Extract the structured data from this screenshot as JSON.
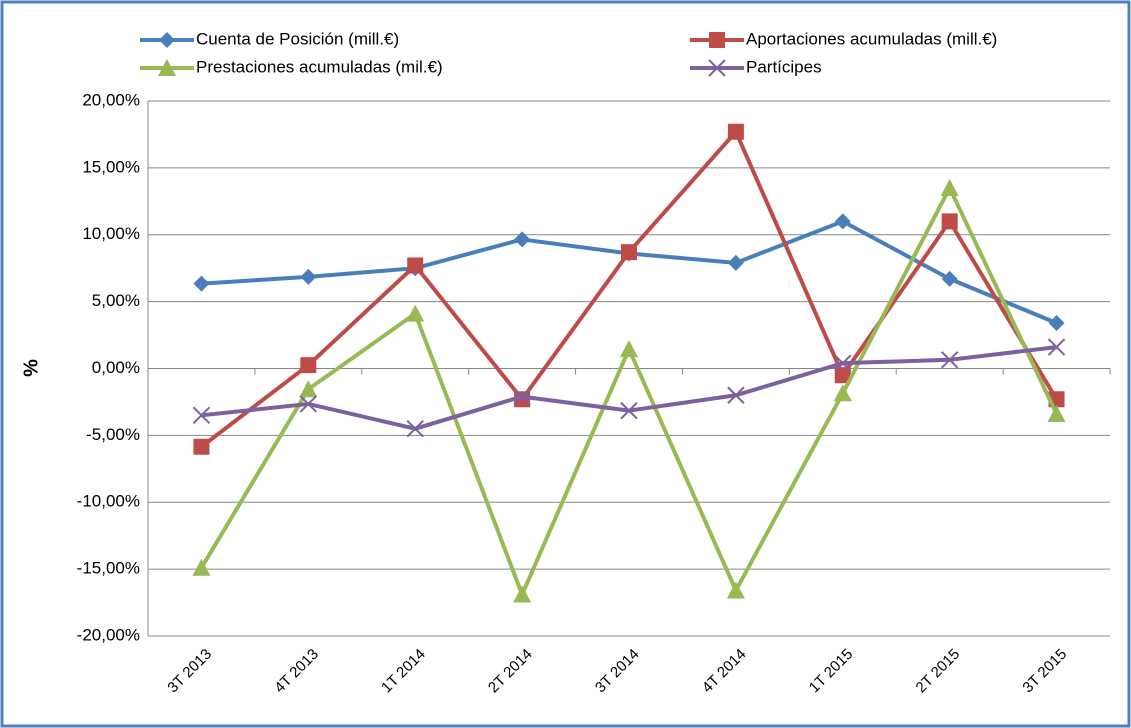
{
  "chart_data": {
    "type": "line",
    "y_label": "%",
    "categories": [
      "3T 2013",
      "4T 2013",
      "1T 2014",
      "2T 2014",
      "3T 2014",
      "4T 2014",
      "1T 2015",
      "2T 2015",
      "3T 2015"
    ],
    "series": [
      {
        "name": "Cuenta de Posición  (mill.€)",
        "color": "#4a7ebb",
        "marker": "diamond",
        "values": [
          6.35,
          6.85,
          7.5,
          9.65,
          8.6,
          7.9,
          11.0,
          6.7,
          3.4
        ]
      },
      {
        "name": "Aportaciones acumuladas  (mill.€)",
        "color": "#be4b48",
        "marker": "square",
        "values": [
          -5.85,
          0.25,
          7.7,
          -2.3,
          8.7,
          17.7,
          -0.5,
          11.0,
          -2.3
        ]
      },
      {
        "name": "Prestaciones acumuladas (mil.€)",
        "color": "#98b954",
        "marker": "triangle",
        "values": [
          -14.9,
          -1.55,
          4.1,
          -16.9,
          1.45,
          -16.6,
          -1.85,
          13.5,
          -3.4
        ]
      },
      {
        "name": "Partícipes",
        "color": "#7d60a0",
        "marker": "x",
        "values": [
          -3.5,
          -2.65,
          -4.5,
          -2.1,
          -3.15,
          -2.0,
          0.4,
          0.65,
          1.6
        ]
      }
    ],
    "ylim": [
      -20,
      20
    ],
    "yticks": [
      {
        "value": -20,
        "label": "-20,00%"
      },
      {
        "value": -15,
        "label": "-15,00%"
      },
      {
        "value": -10,
        "label": "-10,00%"
      },
      {
        "value": -5,
        "label": "-5,00%"
      },
      {
        "value": 0,
        "label": "0,00%"
      },
      {
        "value": 5,
        "label": "5,00%"
      },
      {
        "value": 10,
        "label": "10,00%"
      },
      {
        "value": 15,
        "label": "15,00%"
      },
      {
        "value": 20,
        "label": "20,00%"
      }
    ],
    "grid": true,
    "legend": "top"
  }
}
